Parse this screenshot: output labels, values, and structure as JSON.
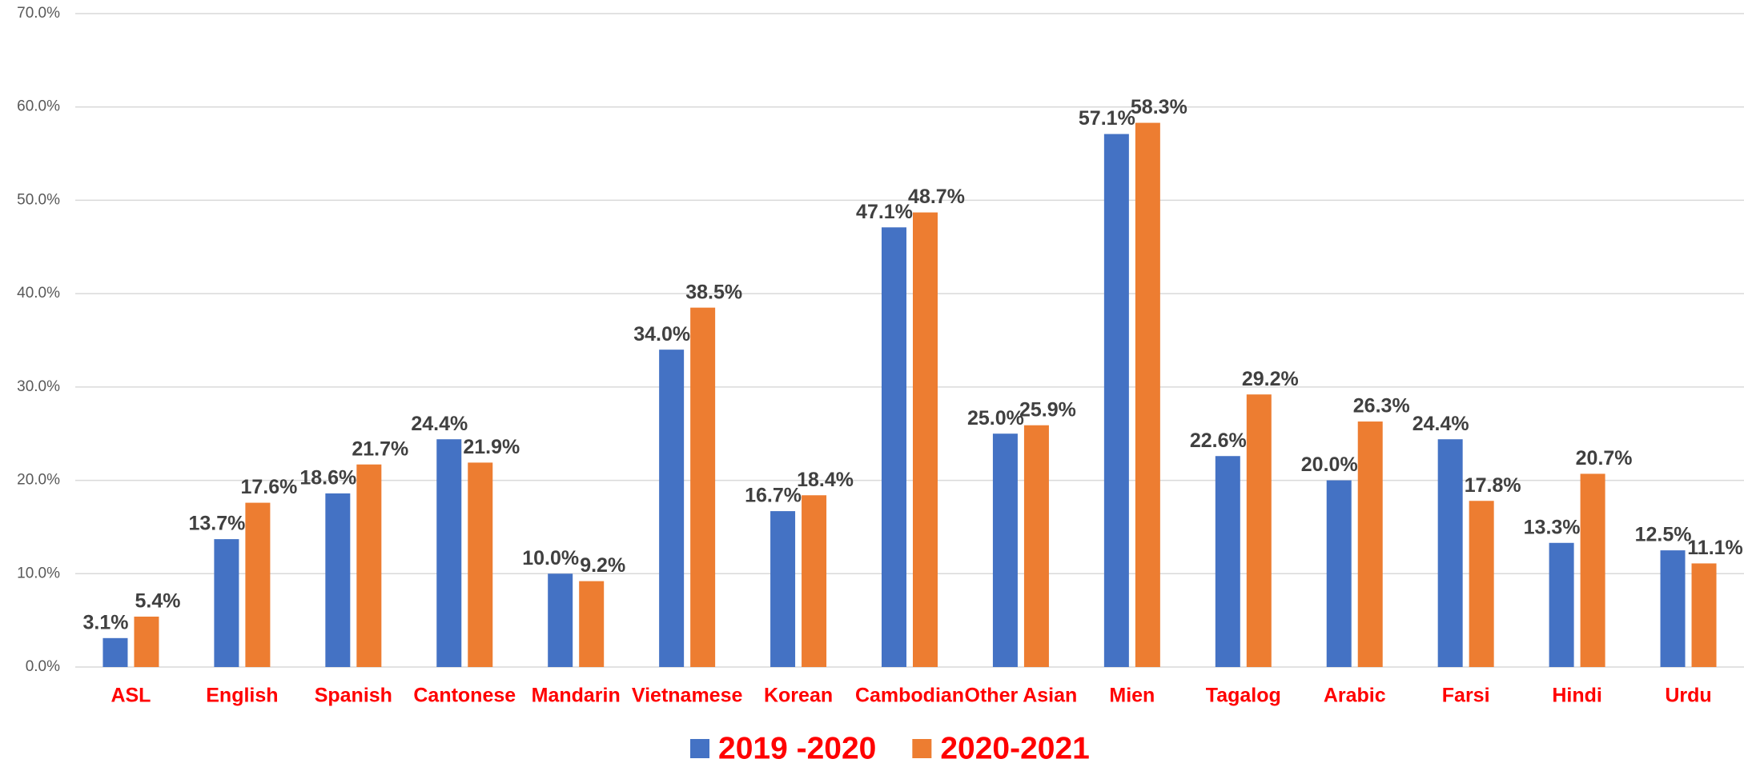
{
  "chart_data": {
    "type": "bar",
    "categories": [
      "ASL",
      "English",
      "Spanish",
      "Cantonese",
      "Mandarin",
      "Vietnamese",
      "Korean",
      "Cambodian",
      "Other Asian",
      "Mien",
      "Tagalog",
      "Arabic",
      "Farsi",
      "Hindi",
      "Urdu"
    ],
    "series": [
      {
        "name": "2019 -2020",
        "color": "#4472c4",
        "values": [
          3.1,
          13.7,
          18.6,
          24.4,
          10.0,
          34.0,
          16.7,
          47.1,
          25.0,
          57.1,
          22.6,
          20.0,
          24.4,
          13.3,
          12.5
        ],
        "value_labels": [
          "3.1%",
          "13.7%",
          "18.6%",
          "24.4%",
          "10.0%",
          "34.0%",
          "16.7%",
          "47.1%",
          "25.0%",
          "57.1%",
          "22.6%",
          "20.0%",
          "24.4%",
          "13.3%",
          "12.5%"
        ]
      },
      {
        "name": "2020-2021",
        "color": "#ed7d31",
        "values": [
          5.4,
          17.6,
          21.7,
          21.9,
          9.2,
          38.5,
          18.4,
          48.7,
          25.9,
          58.3,
          29.2,
          26.3,
          17.8,
          20.7,
          11.1
        ],
        "value_labels": [
          "5.4%",
          "17.6%",
          "21.7%",
          "21.9%",
          "9.2%",
          "38.5%",
          "18.4%",
          "48.7%",
          "25.9%",
          "58.3%",
          "29.2%",
          "26.3%",
          "17.8%",
          "20.7%",
          "11.1%"
        ]
      }
    ],
    "ylim": [
      0,
      70
    ],
    "yticks": [
      {
        "value": 0,
        "label": "0.0%"
      },
      {
        "value": 10,
        "label": "10.0%"
      },
      {
        "value": 20,
        "label": "20.0%"
      },
      {
        "value": 30,
        "label": "30.0%"
      },
      {
        "value": 40,
        "label": "40.0%"
      },
      {
        "value": 50,
        "label": "50.0%"
      },
      {
        "value": 60,
        "label": "60.0%"
      },
      {
        "value": 70,
        "label": "70.0%"
      }
    ],
    "grid": true,
    "legend": "bottom"
  }
}
